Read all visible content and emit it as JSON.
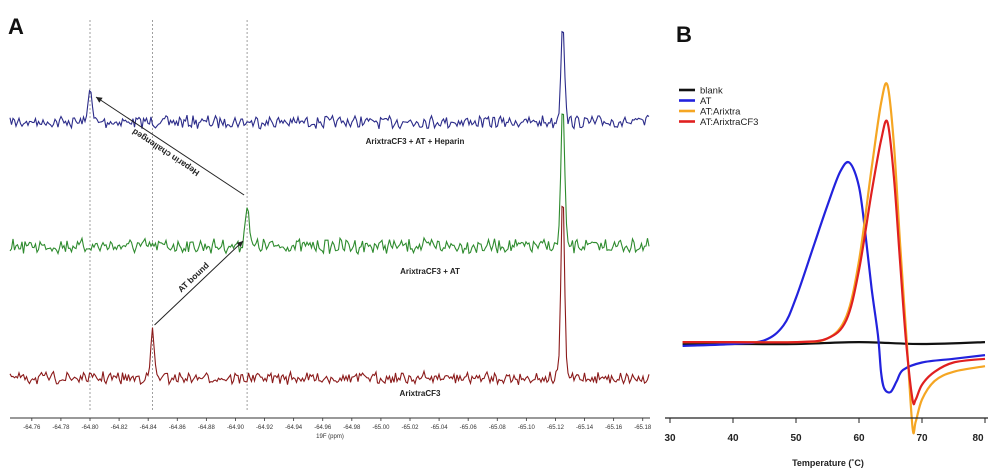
{
  "panels": {
    "a": {
      "letter": "A"
    },
    "b": {
      "letter": "B"
    }
  },
  "chart_data": [
    {
      "type": "line",
      "panel": "A",
      "xlabel": "19F (ppm)",
      "xlim": [
        -64.745,
        -65.185
      ],
      "x_ticks": [
        "-64.76",
        "-64.78",
        "-64.80",
        "-64.82",
        "-64.84",
        "-64.86",
        "-64.88",
        "-64.90",
        "-64.92",
        "-64.94",
        "-64.96",
        "-64.98",
        "-65.00",
        "-65.02",
        "-65.04",
        "-65.06",
        "-65.08",
        "-65.10",
        "-65.12",
        "-65.14",
        "-65.16",
        "-65.18"
      ],
      "reference_lines_ppm": [
        -64.8,
        -64.843,
        -64.908
      ],
      "series": [
        {
          "label": "ArixtraCF3 + AT + Heparin",
          "color": "#2c2c8a",
          "peaks": [
            {
              "ppm": -64.8,
              "height": 0.35
            },
            {
              "ppm": -65.125,
              "height": 1.0
            }
          ]
        },
        {
          "label": "ArixtraCF3 + AT",
          "color": "#2e8b2e",
          "peaks": [
            {
              "ppm": -64.908,
              "height": 0.45
            },
            {
              "ppm": -65.125,
              "height": 1.4
            }
          ]
        },
        {
          "label": "ArixtraCF3",
          "color": "#8b1a1a",
          "peaks": [
            {
              "ppm": -64.843,
              "height": 0.45
            },
            {
              "ppm": -65.125,
              "height": 1.8
            }
          ]
        }
      ],
      "annotations": [
        {
          "text": "AT bound",
          "from_series": "ArixtraCF3",
          "to_series": "ArixtraCF3 + AT"
        },
        {
          "text": "Heparin challenged",
          "from_series": "ArixtraCF3 + AT",
          "to_series": "ArixtraCF3 + AT + Heparin"
        }
      ]
    },
    {
      "type": "line",
      "panel": "B",
      "xlabel": "Temperature (˚C)",
      "xlim": [
        30,
        80
      ],
      "x_ticks": [
        30,
        40,
        50,
        60,
        70,
        80
      ],
      "ylabel": "",
      "legend": "top-left",
      "series": [
        {
          "name": "blank",
          "color": "#111111",
          "points": [
            [
              32,
              0
            ],
            [
              40,
              0
            ],
            [
              50,
              0
            ],
            [
              60,
              0.01
            ],
            [
              70,
              0
            ],
            [
              80,
              0.01
            ]
          ]
        },
        {
          "name": "AT",
          "color": "#2222dd",
          "points": [
            [
              32,
              -0.01
            ],
            [
              40,
              0
            ],
            [
              45,
              0.02
            ],
            [
              48,
              0.1
            ],
            [
              50,
              0.25
            ],
            [
              53,
              0.55
            ],
            [
              55,
              0.75
            ],
            [
              57,
              0.93
            ],
            [
              58.5,
              0.98
            ],
            [
              60,
              0.85
            ],
            [
              61,
              0.6
            ],
            [
              62,
              0.3
            ],
            [
              63,
              0.05
            ],
            [
              63.5,
              -0.15
            ],
            [
              64,
              -0.24
            ],
            [
              65,
              -0.26
            ],
            [
              66,
              -0.2
            ],
            [
              67,
              -0.14
            ],
            [
              70,
              -0.1
            ],
            [
              75,
              -0.08
            ],
            [
              80,
              -0.06
            ]
          ]
        },
        {
          "name": "AT:Arixtra",
          "color": "#f5a623",
          "points": [
            [
              32,
              0.01
            ],
            [
              40,
              0.01
            ],
            [
              50,
              0.01
            ],
            [
              55,
              0.03
            ],
            [
              58,
              0.15
            ],
            [
              60,
              0.45
            ],
            [
              62,
              0.95
            ],
            [
              63.5,
              1.3
            ],
            [
              64.5,
              1.4
            ],
            [
              65.5,
              1.1
            ],
            [
              66.5,
              0.55
            ],
            [
              67.5,
              0.05
            ],
            [
              68.5,
              -0.45
            ],
            [
              69,
              -0.42
            ],
            [
              70,
              -0.3
            ],
            [
              72,
              -0.2
            ],
            [
              75,
              -0.15
            ],
            [
              80,
              -0.12
            ]
          ]
        },
        {
          "name": "AT:ArixtraCF3",
          "color": "#e02020",
          "points": [
            [
              32,
              0.01
            ],
            [
              40,
              0.01
            ],
            [
              50,
              0.01
            ],
            [
              55,
              0.03
            ],
            [
              58,
              0.13
            ],
            [
              60,
              0.4
            ],
            [
              62,
              0.82
            ],
            [
              63.5,
              1.1
            ],
            [
              64.5,
              1.2
            ],
            [
              65.5,
              0.92
            ],
            [
              66.5,
              0.45
            ],
            [
              67.5,
              0.0
            ],
            [
              68.5,
              -0.3
            ],
            [
              69,
              -0.3
            ],
            [
              70,
              -0.22
            ],
            [
              72,
              -0.15
            ],
            [
              75,
              -0.1
            ],
            [
              80,
              -0.08
            ]
          ]
        }
      ]
    }
  ]
}
